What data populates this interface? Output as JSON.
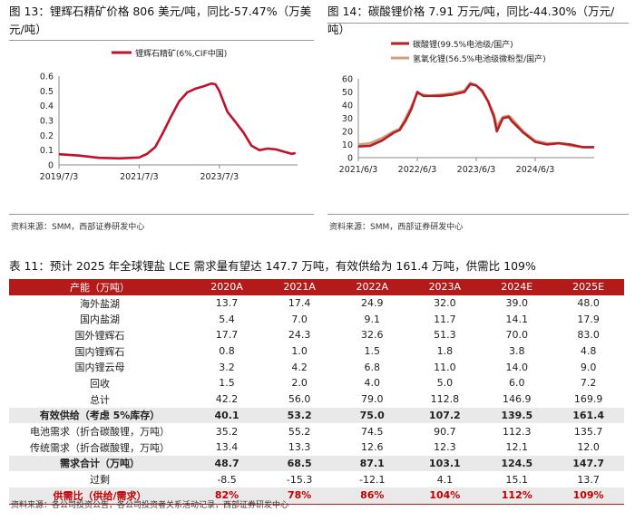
{
  "fig13": {
    "caption": "图 13：锂辉石精矿价格 806 美元/吨，同比-57.47%（万美元/吨）",
    "source": "资料来源：SMM，西部证券研发中心"
  },
  "fig14": {
    "caption": "图 14：碳酸锂价格 7.91 万元/吨，同比-44.30%（万元/吨）",
    "source": "资料来源：SMM，西部证券研发中心"
  },
  "table11": {
    "caption": "表 11：预计 2025 年全球锂盐 LCE 需求量有望达 147.7 万吨，有效供给为 161.4 万吨，供需比 109%",
    "headers": [
      "产能（万吨）",
      "2020A",
      "2021A",
      "2022A",
      "2023A",
      "2024E",
      "2025E"
    ],
    "rows": [
      [
        "海外盐湖",
        "13.7",
        "17.4",
        "24.9",
        "32.0",
        "39.0",
        "48.0"
      ],
      [
        "国内盐湖",
        "5.4",
        "7.0",
        "9.1",
        "11.7",
        "14.1",
        "17.9"
      ],
      [
        "国外锂辉石",
        "17.7",
        "24.3",
        "32.6",
        "51.3",
        "70.0",
        "83.0"
      ],
      [
        "国内锂辉石",
        "0.8",
        "1.0",
        "1.5",
        "1.8",
        "3.8",
        "4.8"
      ],
      [
        "国内锂云母",
        "3.2",
        "4.2",
        "6.8",
        "11.0",
        "14.0",
        "9.0"
      ],
      [
        "回收",
        "1.5",
        "2.0",
        "4.0",
        "5.0",
        "6.0",
        "7.2"
      ],
      [
        "总计",
        "42.2",
        "56.0",
        "79.0",
        "112.8",
        "146.9",
        "169.9"
      ],
      [
        "有效供给（考虑 5%库存）",
        "40.1",
        "53.2",
        "75.0",
        "107.2",
        "139.5",
        "161.4"
      ],
      [
        "电池需求（折合碳酸锂，万吨）",
        "35.2",
        "55.2",
        "74.5",
        "90.7",
        "112.3",
        "135.7"
      ],
      [
        "传统需求（折合碳酸锂，万吨）",
        "13.4",
        "13.3",
        "12.6",
        "12.3",
        "12.1",
        "12.0"
      ],
      [
        "需求合计（万吨）",
        "48.7",
        "68.5",
        "87.1",
        "103.1",
        "124.5",
        "147.7"
      ],
      [
        "过剩",
        "-8.5",
        "-15.3",
        "-12.1",
        "4.1",
        "15.1",
        "13.7"
      ],
      [
        "供需比（供给/需求）",
        "82%",
        "78%",
        "86%",
        "104%",
        "112%",
        "109%"
      ]
    ],
    "source": "资料来源：各公司投资公告，各公司投资者关系活动记录，西部证券研发中心"
  },
  "chart_data": [
    {
      "type": "line",
      "title": "图 13：锂辉石精矿价格 806 美元/吨，同比-57.47%（万美元/吨）",
      "legend": "锂辉石精矿(6%,CIF中国)",
      "ylim": [
        0,
        0.6
      ],
      "yticks": [
        "0",
        "0.1",
        "0.2",
        "0.3",
        "0.4",
        "0.5",
        "0.6"
      ],
      "xticks": [
        "2019/7/3",
        "2021/7/3",
        "2023/7/3"
      ],
      "color": "#c0102a",
      "series": [
        {
          "name": "锂辉石精矿(6%,CIF中国)",
          "x": [
            2019.0,
            2019.5,
            2020.0,
            2020.5,
            2021.0,
            2021.2,
            2021.4,
            2021.6,
            2021.8,
            2022.0,
            2022.2,
            2022.4,
            2022.6,
            2022.8,
            2022.9,
            2023.0,
            2023.1,
            2023.2,
            2023.4,
            2023.6,
            2023.8,
            2024.0,
            2024.2,
            2024.4,
            2024.6,
            2024.8,
            2024.9
          ],
          "values": [
            0.072,
            0.063,
            0.048,
            0.044,
            0.05,
            0.075,
            0.12,
            0.22,
            0.33,
            0.43,
            0.49,
            0.515,
            0.53,
            0.55,
            0.545,
            0.5,
            0.43,
            0.36,
            0.29,
            0.22,
            0.13,
            0.1,
            0.11,
            0.105,
            0.09,
            0.075,
            0.08
          ]
        }
      ]
    },
    {
      "type": "line",
      "title": "图 14：碳酸锂价格 7.91 万元/吨，同比-44.30%（万元/吨）",
      "ylim": [
        0,
        60
      ],
      "yticks": [
        "0",
        "10",
        "20",
        "30",
        "40",
        "50",
        "60"
      ],
      "xticks": [
        "2021/6/3",
        "2022/6/3",
        "2023/6/3",
        "2024/6/3"
      ],
      "series": [
        {
          "name": "碳酸锂(99.5%电池级/国产)",
          "color": "#b81c24",
          "x": [
            2021.0,
            2021.2,
            2021.4,
            2021.6,
            2021.7,
            2021.8,
            2021.9,
            2022.0,
            2022.1,
            2022.2,
            2022.4,
            2022.6,
            2022.8,
            2022.9,
            2023.0,
            2023.1,
            2023.2,
            2023.3,
            2023.35,
            2023.45,
            2023.55,
            2023.6,
            2023.8,
            2024.0,
            2024.2,
            2024.4,
            2024.6,
            2024.8,
            2025.0
          ],
          "values": [
            8.5,
            9.0,
            13,
            19,
            21,
            28,
            37,
            50,
            47,
            47,
            47,
            48,
            50,
            56,
            55,
            51,
            43,
            31,
            20,
            30,
            31,
            28,
            19,
            12,
            10,
            11,
            10,
            8,
            8
          ]
        },
        {
          "name": "氢氧化锂(56.5%电池级微粉型/国产)",
          "color": "#c9a27e",
          "x": [
            2021.0,
            2021.2,
            2021.4,
            2021.6,
            2021.7,
            2021.8,
            2021.9,
            2022.0,
            2022.1,
            2022.2,
            2022.4,
            2022.6,
            2022.8,
            2022.9,
            2023.0,
            2023.1,
            2023.2,
            2023.3,
            2023.35,
            2023.45,
            2023.55,
            2023.6,
            2023.8,
            2024.0,
            2024.2,
            2024.4,
            2024.6,
            2024.8,
            2025.0
          ],
          "values": [
            10,
            11,
            15,
            20,
            22,
            30,
            39,
            49,
            48,
            47,
            48,
            49,
            51,
            57,
            55,
            50,
            43,
            33,
            24,
            31,
            32,
            30,
            20,
            13,
            11,
            11,
            9,
            8,
            8
          ]
        }
      ]
    }
  ]
}
